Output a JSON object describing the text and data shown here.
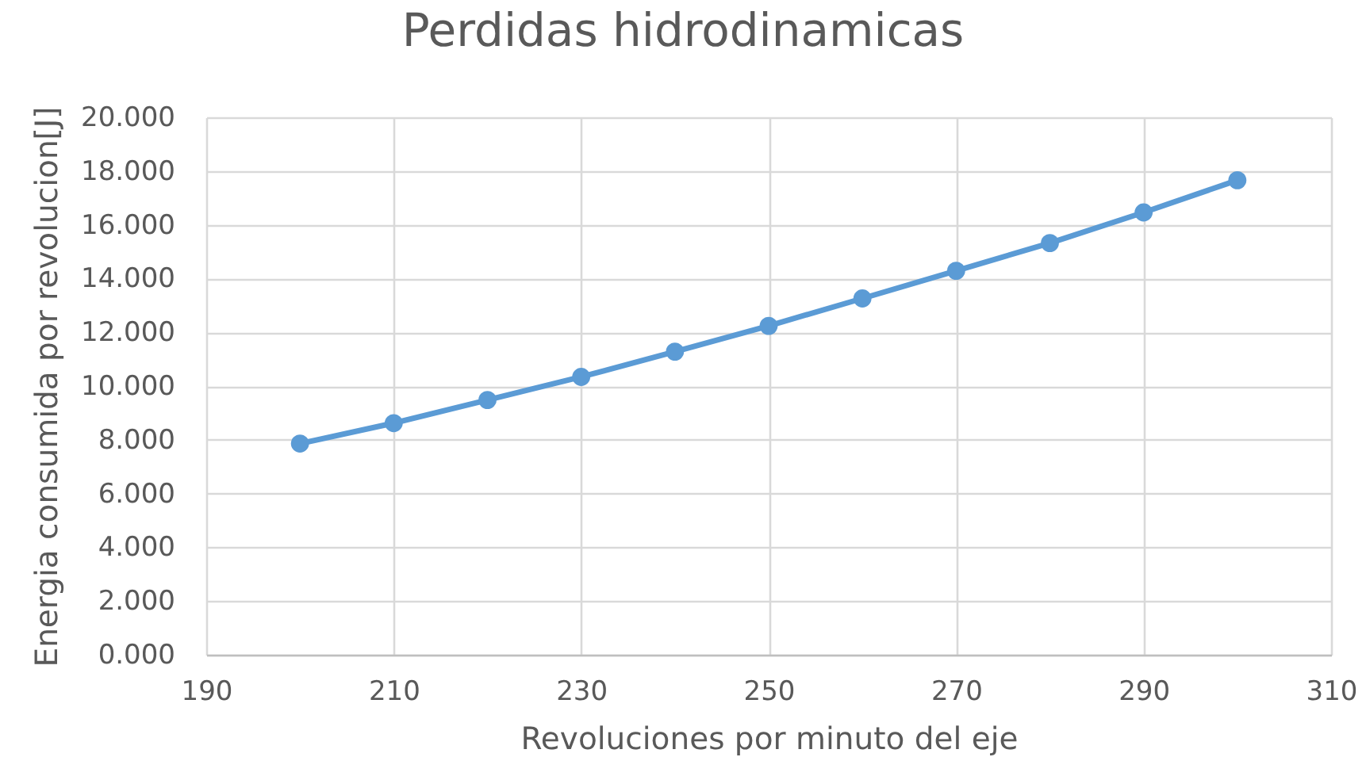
{
  "chart_data": {
    "type": "line",
    "title": "Perdidas hidrodinamicas",
    "xlabel": "Revoluciones por minuto del eje",
    "ylabel": "Energia consumida por revolucion[J]",
    "x": [
      200,
      210,
      220,
      230,
      240,
      250,
      260,
      270,
      280,
      290,
      300
    ],
    "series": [
      {
        "color": "#5b9bd5",
        "values": [
          7.86,
          8.62,
          9.48,
          10.34,
          11.28,
          12.24,
          13.26,
          14.29,
          15.32,
          16.46,
          17.66
        ]
      }
    ],
    "xlim": [
      190,
      310
    ],
    "xticks": [
      190,
      210,
      230,
      250,
      270,
      290,
      310
    ],
    "ylim": [
      0,
      20
    ],
    "yticks": [
      {
        "value": 0,
        "label": "0.000"
      },
      {
        "value": 2,
        "label": "2.000"
      },
      {
        "value": 4,
        "label": "4.000"
      },
      {
        "value": 6,
        "label": "6.000"
      },
      {
        "value": 8,
        "label": "8.000"
      },
      {
        "value": 10,
        "label": "10.000"
      },
      {
        "value": 12,
        "label": "12.000"
      },
      {
        "value": 14,
        "label": "14.000"
      },
      {
        "value": 16,
        "label": "16.000"
      },
      {
        "value": 18,
        "label": "18.000"
      },
      {
        "value": 20,
        "label": "20.000"
      }
    ],
    "grid": true,
    "marker": "circle",
    "line_style": "solid"
  }
}
